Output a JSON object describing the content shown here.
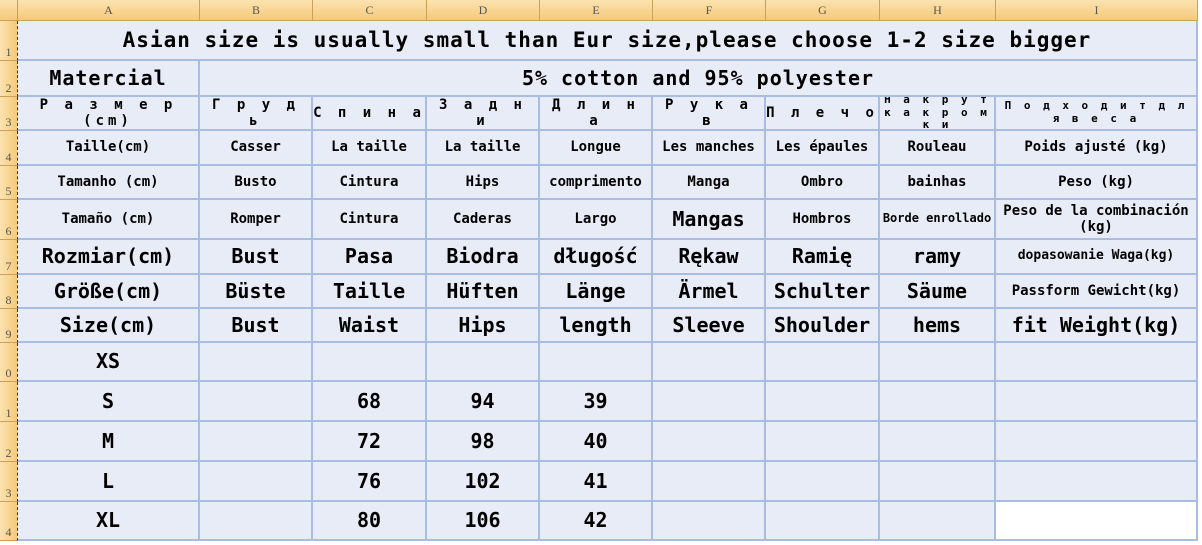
{
  "columns": [
    "A",
    "B",
    "C",
    "D",
    "E",
    "F",
    "G",
    "H",
    "I"
  ],
  "row_numbers": [
    "1",
    "2",
    "3",
    "4",
    "5",
    "6",
    "7",
    "8",
    "9",
    "0",
    "1",
    "2",
    "3",
    "4"
  ],
  "title": "Asian size is usually small than Eur size,please choose 1-2 size bigger",
  "material_label": "Matercial",
  "material_value": "5% cotton and 95% polyester",
  "rows": [
    [
      "Р а з м е р (cm)",
      "Г р у д ь",
      "С п и н а",
      "З а д н и",
      "Д л и н а",
      "Р у к а в",
      "П л е ч о",
      "Н а к р у т к а к р о м к и",
      "П о д х о д и т  д л я в е с а"
    ],
    [
      "Taille(cm)",
      "Casser",
      "La taille",
      "La taille",
      "Longue",
      "Les manches",
      "Les épaules",
      "Rouleau",
      "Poids ajusté (kg)"
    ],
    [
      "Tamanho (cm)",
      "Busto",
      "Cintura",
      "Hips",
      "comprimento",
      "Manga",
      "Ombro",
      "bainhas",
      "Peso (kg)"
    ],
    [
      "Tamaño (cm)",
      "Romper",
      "Cintura",
      "Caderas",
      "Largo",
      "Mangas",
      "Hombros",
      "Borde enrollado",
      "Peso de la combinación (kg)"
    ],
    [
      "Rozmiar(cm)",
      "Bust",
      "Pasa",
      "Biodra",
      "długość",
      "Rękaw",
      "Ramię",
      "ramy",
      "dopasowanie Waga(kg)"
    ],
    [
      "Größe(cm)",
      "Büste",
      "Taille",
      "Hüften",
      "Länge",
      "Ärmel",
      "Schulter",
      "Säume",
      "Passform Gewicht(kg)"
    ],
    [
      "Size(cm)",
      "Bust",
      "Waist",
      "Hips",
      "length",
      "Sleeve",
      "Shoulder",
      "hems",
      "fit Weight(kg)"
    ],
    [
      "XS",
      "",
      "",
      "",
      "",
      "",
      "",
      "",
      ""
    ],
    [
      "S",
      "",
      "68",
      "94",
      "39",
      "",
      "",
      "",
      ""
    ],
    [
      "M",
      "",
      "72",
      "98",
      "40",
      "",
      "",
      "",
      ""
    ],
    [
      "L",
      "",
      "76",
      "102",
      "41",
      "",
      "",
      "",
      ""
    ],
    [
      "XL",
      "",
      "80",
      "106",
      "42",
      "",
      "",
      "",
      ""
    ]
  ]
}
